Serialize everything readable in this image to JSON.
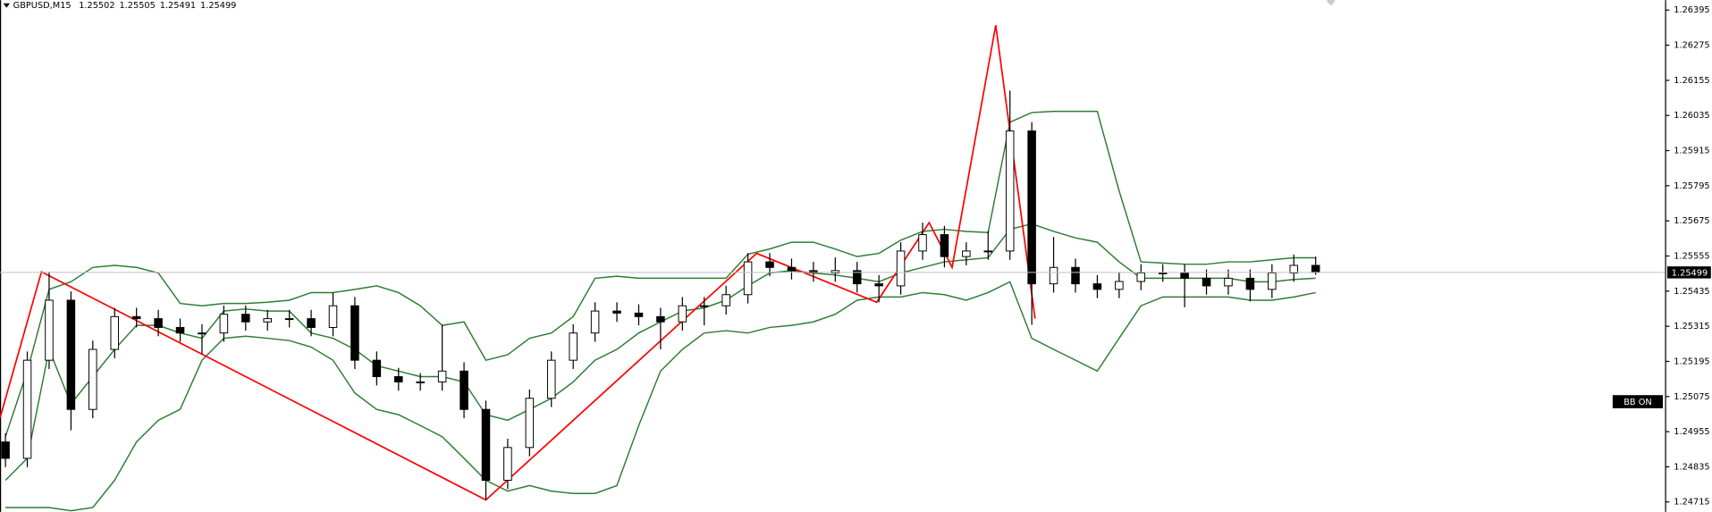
{
  "chart_data": {
    "type": "candlestick",
    "title": "GBPUSD,M15",
    "header_values": [
      1.25502,
      1.25505,
      1.25491,
      1.25499
    ],
    "ylim": [
      1.24681,
      1.26429
    ],
    "yticks": [
      1.26395,
      1.26275,
      1.26155,
      1.26035,
      1.25915,
      1.25795,
      1.25675,
      1.25555,
      1.25435,
      1.25315,
      1.25195,
      1.25075,
      1.24955,
      1.24835,
      1.24715
    ],
    "last_price": 1.25499,
    "annotations": [
      "BB ON"
    ],
    "up_color": "#ffffff",
    "down_color": "#000000",
    "open": [
      1.2492,
      1.24864,
      1.25199,
      1.25404,
      1.25031,
      1.25236,
      1.25348,
      1.25341,
      1.25311,
      1.25292,
      1.25292,
      1.25356,
      1.2533,
      1.25341,
      1.25341,
      1.25311,
      1.25385,
      1.25199,
      1.25143,
      1.25125,
      1.25125,
      1.25162,
      1.25031,
      1.24789,
      1.24901,
      1.25069,
      1.25199,
      1.25292,
      1.25367,
      1.2536,
      1.25348,
      1.2533,
      1.25385,
      1.25385,
      1.25423,
      1.25535,
      1.25516,
      1.25505,
      1.25497,
      1.25505,
      1.2546,
      1.25453,
      1.25572,
      1.25628,
      1.25553,
      1.25572,
      1.25572,
      1.25982,
      1.2546,
      1.25516,
      1.2546,
      1.25441,
      1.25468,
      1.25497,
      1.25497,
      1.25479,
      1.25453,
      1.25479,
      1.25441,
      1.25497,
      1.25523
    ],
    "high": [
      1.2495,
      1.25229,
      1.25501,
      1.25434,
      1.25266,
      1.25378,
      1.25378,
      1.25371,
      1.25341,
      1.25322,
      1.25386,
      1.25386,
      1.25371,
      1.25371,
      1.25371,
      1.2543,
      1.25415,
      1.25229,
      1.25173,
      1.25155,
      1.2532,
      1.25192,
      1.25061,
      1.24931,
      1.25099,
      1.25229,
      1.25322,
      1.25397,
      1.25397,
      1.2539,
      1.25378,
      1.25415,
      1.25415,
      1.25453,
      1.25565,
      1.25565,
      1.25546,
      1.25535,
      1.2555,
      1.25535,
      1.2549,
      1.25602,
      1.25669,
      1.25658,
      1.25602,
      1.2564,
      1.2612,
      1.26012,
      1.2562,
      1.25546,
      1.2549,
      1.25498,
      1.25527,
      1.25527,
      1.25527,
      1.25509,
      1.25509,
      1.25509,
      1.25527,
      1.2556,
      1.25553
    ],
    "low": [
      1.24834,
      1.24834,
      1.25169,
      1.2496,
      1.25001,
      1.25206,
      1.25311,
      1.25281,
      1.25262,
      1.2522,
      1.25262,
      1.253,
      1.253,
      1.25311,
      1.25281,
      1.25281,
      1.25169,
      1.25113,
      1.25095,
      1.25095,
      1.25095,
      1.25001,
      1.24722,
      1.24759,
      1.24871,
      1.25039,
      1.25169,
      1.25262,
      1.2533,
      1.25318,
      1.25236,
      1.253,
      1.25318,
      1.25355,
      1.25393,
      1.25486,
      1.25475,
      1.25467,
      1.25467,
      1.2543,
      1.25397,
      1.25423,
      1.25542,
      1.25516,
      1.25523,
      1.25542,
      1.25542,
      1.2532,
      1.2543,
      1.2543,
      1.25411,
      1.25411,
      1.25438,
      1.25467,
      1.2538,
      1.25423,
      1.25423,
      1.254,
      1.25411,
      1.25467,
      1.25491
    ],
    "close": [
      1.24864,
      1.25199,
      1.25404,
      1.25031,
      1.25236,
      1.25348,
      1.25341,
      1.25311,
      1.25292,
      1.25292,
      1.25356,
      1.2533,
      1.25341,
      1.25341,
      1.25311,
      1.25385,
      1.25199,
      1.25143,
      1.25125,
      1.25125,
      1.25162,
      1.25031,
      1.24789,
      1.24901,
      1.25069,
      1.25199,
      1.25292,
      1.25367,
      1.2536,
      1.25348,
      1.2533,
      1.25385,
      1.25385,
      1.25423,
      1.25535,
      1.25516,
      1.25505,
      1.25497,
      1.25505,
      1.2546,
      1.25453,
      1.25572,
      1.25628,
      1.25553,
      1.25572,
      1.25572,
      1.25982,
      1.2546,
      1.25516,
      1.2546,
      1.25441,
      1.25468,
      1.25497,
      1.25497,
      1.25479,
      1.25453,
      1.25479,
      1.25441,
      1.25497,
      1.25523,
      1.25499
    ],
    "bands": [
      {
        "color": "#2e7d32",
        "values": [
          1.24938,
          1.25162,
          1.25441,
          1.25467,
          1.25516,
          1.25523,
          1.25516,
          1.25497,
          1.25393,
          1.25385,
          1.25393,
          1.25393,
          1.25397,
          1.25404,
          1.2543,
          1.2543,
          1.25441,
          1.25453,
          1.2543,
          1.25385,
          1.25318,
          1.2533,
          1.25199,
          1.25218,
          1.25274,
          1.25292,
          1.25348,
          1.25479,
          1.25486,
          1.25479,
          1.25479,
          1.25479,
          1.25479,
          1.25479,
          1.25561,
          1.25579,
          1.25602,
          1.25602,
          1.25579,
          1.25553,
          1.25564,
          1.25609,
          1.25639,
          1.25646,
          1.25639,
          1.25635,
          1.26012,
          1.26045,
          1.26049,
          1.26049,
          1.26049,
          1.25777,
          1.25535,
          1.25531,
          1.25527,
          1.25527,
          1.25535,
          1.25535,
          1.25542,
          1.25549,
          1.25549
        ]
      },
      {
        "color": "#2e7d32",
        "values": [
          1.24789,
          1.24864,
          1.25236,
          1.2505,
          1.25143,
          1.25236,
          1.25318,
          1.25318,
          1.25292,
          1.25274,
          1.25367,
          1.25374,
          1.25367,
          1.25367,
          1.25292,
          1.25274,
          1.25236,
          1.2518,
          1.25162,
          1.25143,
          1.25143,
          1.25125,
          1.25013,
          1.24994,
          1.25031,
          1.25069,
          1.25125,
          1.25199,
          1.25236,
          1.25292,
          1.2533,
          1.25367,
          1.25378,
          1.25404,
          1.25453,
          1.25497,
          1.25505,
          1.25497,
          1.2549,
          1.25479,
          1.25467,
          1.25497,
          1.25516,
          1.25535,
          1.25542,
          1.25549,
          1.25646,
          1.25665,
          1.25639,
          1.25617,
          1.25602,
          1.25535,
          1.25479,
          1.25479,
          1.25479,
          1.25479,
          1.25479,
          1.25467,
          1.25467,
          1.25475,
          1.25479
        ]
      },
      {
        "color": "#2e7d32",
        "values": [
          1.24696,
          1.24696,
          1.24696,
          1.24685,
          1.24696,
          1.24789,
          1.2492,
          1.24994,
          1.25031,
          1.25199,
          1.25274,
          1.25281,
          1.25274,
          1.25266,
          1.25244,
          1.25199,
          1.25087,
          1.25031,
          1.25013,
          1.24976,
          1.24938,
          1.24864,
          1.24789,
          1.24752,
          1.24771,
          1.24752,
          1.24744,
          1.24744,
          1.24771,
          1.24976,
          1.25162,
          1.25236,
          1.25292,
          1.253,
          1.25292,
          1.25311,
          1.25318,
          1.2533,
          1.25356,
          1.25404,
          1.25415,
          1.25415,
          1.2543,
          1.25423,
          1.25404,
          1.2543,
          1.25467,
          1.25274,
          1.25236,
          1.25199,
          1.25162,
          1.25274,
          1.25385,
          1.25415,
          1.25415,
          1.25415,
          1.25415,
          1.25404,
          1.25404,
          1.25415,
          1.2543
        ]
      }
    ],
    "zigzag": {
      "color": "#ff0000",
      "x": [
        -0.25,
        1.65,
        22,
        34.4,
        39.9,
        42.3,
        43.35,
        45.35,
        47.15
      ],
      "values": [
        1.25002,
        1.25501,
        1.24722,
        1.25564,
        1.25397,
        1.25669,
        1.25516,
        1.26343,
        1.25341
      ]
    }
  }
}
